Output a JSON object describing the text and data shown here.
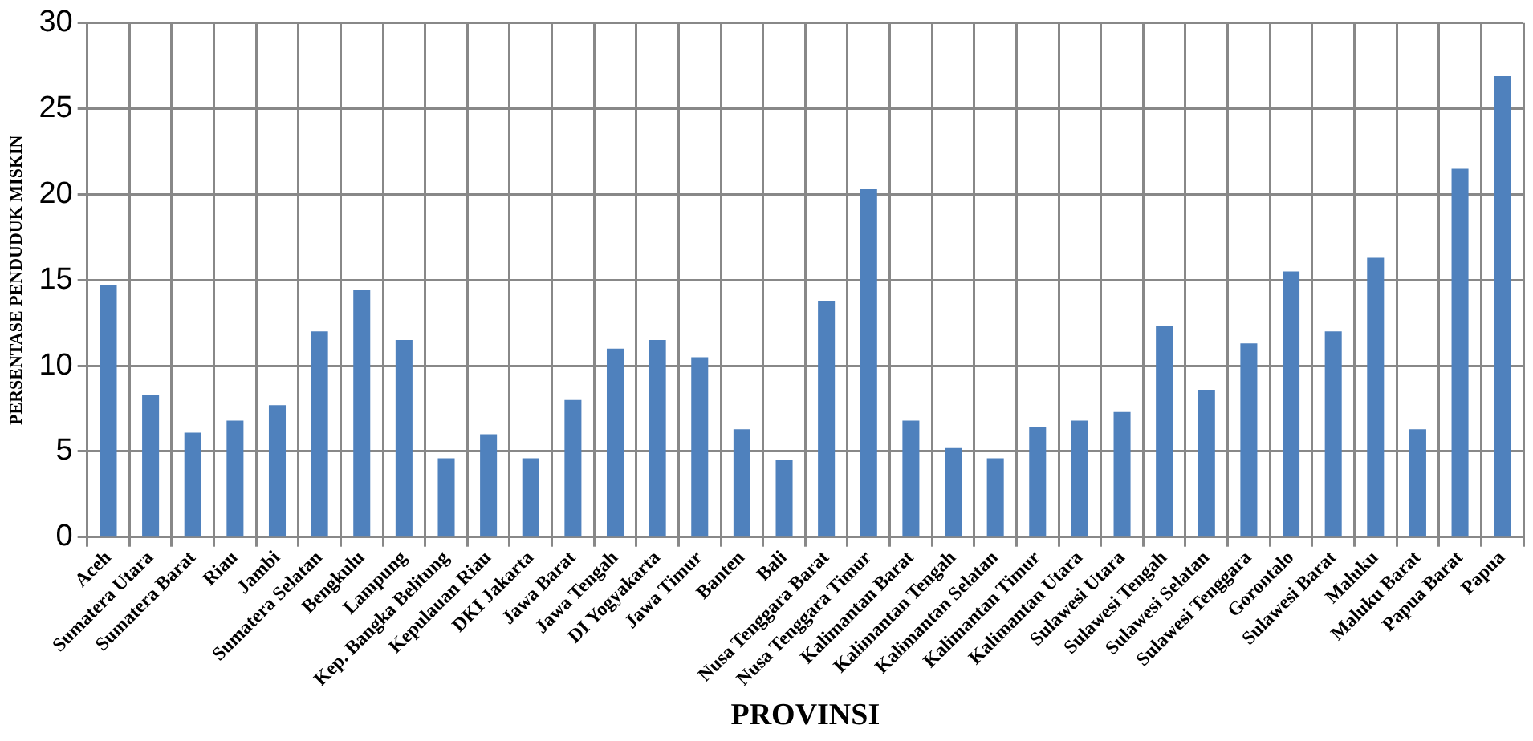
{
  "chart_data": {
    "type": "bar",
    "xlabel": "PROVINSI",
    "ylabel": "PERSENTASE PENDUDUK MISKIN",
    "categories": [
      "Aceh",
      "Sumatera Utara",
      "Sumatera Barat",
      "Riau",
      "Jambi",
      "Sumatera Selatan",
      "Bengkulu",
      "Lampung",
      "Kep. Bangka Belitung",
      "Kepulauan Riau",
      "DKI Jakarta",
      "Jawa Barat",
      "Jawa Tengah",
      "DI Yogyakarta",
      "Jawa Timur",
      "Banten",
      "Bali",
      "Nusa Tenggara Barat",
      "Nusa Tenggara Timur",
      "Kalimantan Barat",
      "Kalimantan Tengah",
      "Kalimantan Selatan",
      "Kalimantan Timur",
      "Kalimantan Utara",
      "Sulawesi Utara",
      "Sulawesi Tengah",
      "Sulawesi Selatan",
      "Sulawesi Tenggara",
      "Gorontalo",
      "Sulawesi Barat",
      "Maluku",
      "Maluku Barat",
      "Papua Barat",
      "Papua"
    ],
    "values": [
      14.7,
      8.3,
      6.1,
      6.8,
      7.7,
      12.0,
      14.4,
      11.5,
      4.6,
      6.0,
      4.6,
      8.0,
      11.0,
      11.5,
      10.5,
      6.3,
      4.5,
      13.8,
      20.3,
      6.8,
      5.2,
      4.6,
      6.4,
      6.8,
      7.3,
      12.3,
      8.6,
      11.3,
      15.5,
      12.0,
      16.3,
      6.3,
      21.5,
      26.9
    ],
    "color": "#4f81bd",
    "ylim": [
      0,
      30
    ],
    "yticks": [
      0,
      5,
      10,
      15,
      20,
      25,
      30
    ],
    "grid": true,
    "legend": false
  }
}
